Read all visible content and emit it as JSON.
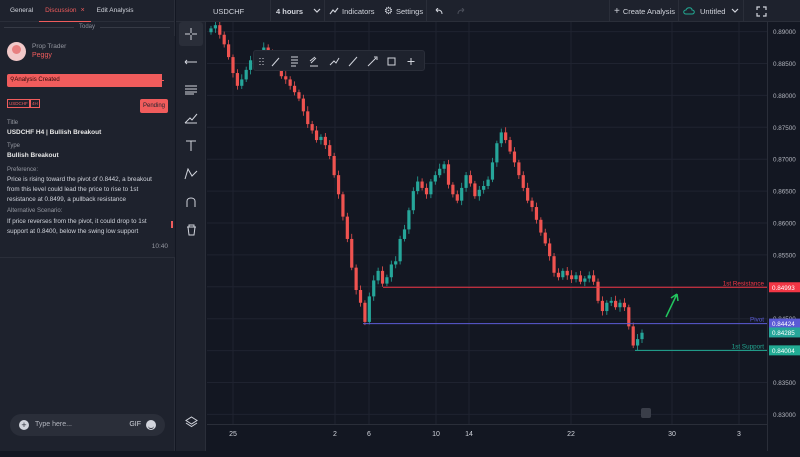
{
  "panel": {
    "tabs": [
      {
        "label": "General"
      },
      {
        "label": "Discussion",
        "close": "×"
      },
      {
        "label": "Edit Analysis"
      }
    ],
    "date_divider": "Today",
    "message": {
      "role": "Prop Trader",
      "user": "Peggy",
      "event": "Analysis Created",
      "tags": [
        "USDCHF",
        "4H"
      ],
      "status": "Pending",
      "title_label": "Title",
      "title": "USDCHF H4 | Bullish Breakout",
      "type_label": "Type",
      "type": "Bullish Breakout",
      "preference_label": "Preference:",
      "preference": "Price is rising toward the pivot of 0.8442, a breakout from this level could lead the price to rise to 1st resistance at 0.8499, a pullback resistance",
      "alt_label": "Alternative Scenario:",
      "alt": "If price reverses from the pivot, it could drop to 1st support at 0.8400, below the swing low support",
      "time": "10:40"
    },
    "composer": {
      "placeholder": "Type here...",
      "gif": "GIF",
      "plus_icon": "plus-icon",
      "emoji_icon": "emoji-icon"
    }
  },
  "topbar": {
    "symbol": "USDCHF",
    "interval": "4 hours",
    "indicators": "Indicators",
    "settings": "Settings",
    "create": "Create Analysis",
    "layout": "Untitled"
  },
  "colors": {
    "up": "#26a69a",
    "down": "#ef5350",
    "accent": "#f05c5c",
    "resistance": "#f23645",
    "pivot": "#5b5bd6",
    "support": "#22ab94"
  },
  "chart_data": {
    "type": "candlestick",
    "symbol": "USDCHF",
    "interval": "4 hours",
    "y_ticks": [
      0.89,
      0.885,
      0.88,
      0.875,
      0.87,
      0.865,
      0.86,
      0.855,
      0.85,
      0.845,
      0.84,
      0.835,
      0.83
    ],
    "ylim": [
      0.8285,
      0.8915
    ],
    "x_ticks": [
      "25",
      "2",
      "6",
      "10",
      "14",
      "22",
      "30",
      "3"
    ],
    "levels": [
      {
        "name": "1st Resistance",
        "value": 0.84993,
        "label": "0.84993",
        "color": "#f23645"
      },
      {
        "name": "Pivot",
        "value": 0.84424,
        "label": "0.84424",
        "color": "#5b5bd6"
      },
      {
        "name": "1st Support",
        "value": 0.84004,
        "label": "0.84004",
        "color": "#22ab94"
      }
    ],
    "last_price": "0.84285",
    "closes": [
      0.8905,
      0.891,
      0.8895,
      0.888,
      0.886,
      0.8835,
      0.8815,
      0.8825,
      0.884,
      0.8855,
      0.8845,
      0.886,
      0.8875,
      0.8865,
      0.886,
      0.8845,
      0.883,
      0.8825,
      0.8815,
      0.8805,
      0.8795,
      0.8775,
      0.8755,
      0.8745,
      0.873,
      0.8735,
      0.8722,
      0.8705,
      0.8675,
      0.8645,
      0.861,
      0.8575,
      0.853,
      0.8495,
      0.8475,
      0.8445,
      0.8485,
      0.851,
      0.8525,
      0.8505,
      0.8515,
      0.8535,
      0.854,
      0.8575,
      0.859,
      0.862,
      0.865,
      0.8665,
      0.8655,
      0.8645,
      0.8665,
      0.8675,
      0.8685,
      0.8692,
      0.866,
      0.8645,
      0.8635,
      0.8655,
      0.8675,
      0.8662,
      0.8642,
      0.8652,
      0.8658,
      0.8668,
      0.8695,
      0.8725,
      0.8742,
      0.873,
      0.8712,
      0.8695,
      0.8675,
      0.8655,
      0.8635,
      0.8625,
      0.8605,
      0.8585,
      0.8568,
      0.8548,
      0.8522,
      0.8515,
      0.8525,
      0.8518,
      0.8512,
      0.8518,
      0.8508,
      0.8513,
      0.8518,
      0.8508,
      0.8478,
      0.8462,
      0.8475,
      0.8478,
      0.8468,
      0.8475,
      0.8468,
      0.8438,
      0.8408,
      0.8418,
      0.8428
    ]
  }
}
